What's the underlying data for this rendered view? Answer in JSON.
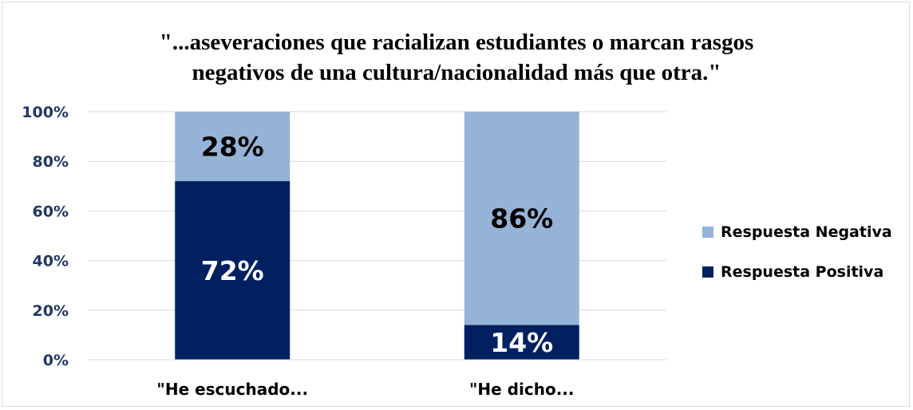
{
  "chart_data": {
    "type": "bar",
    "stacked": true,
    "title_lines": [
      "\"...aseveraciones que racializan estudiantes o marcan rasgos",
      "negativos de una cultura/nacionalidad más que otra.\""
    ],
    "categories": [
      "\"He escuchado...",
      "\"He dicho..."
    ],
    "series": [
      {
        "name": "Respuesta Positiva",
        "values": [
          72,
          14
        ],
        "labels": [
          "72%",
          "14%"
        ],
        "color": "#002060",
        "label_color": "#ffffff"
      },
      {
        "name": "Respuesta Negativa",
        "values": [
          28,
          86
        ],
        "labels": [
          "28%",
          "86%"
        ],
        "color": "#95b3d7",
        "label_color": "#000000"
      }
    ],
    "ylim": [
      0,
      100
    ],
    "yticks": [
      "0%",
      "20%",
      "40%",
      "60%",
      "80%",
      "100%"
    ],
    "tick_color": "#1f3864",
    "grid": true,
    "legend": {
      "placement": "right",
      "order": [
        "Respuesta Negativa",
        "Respuesta Positiva"
      ]
    }
  }
}
